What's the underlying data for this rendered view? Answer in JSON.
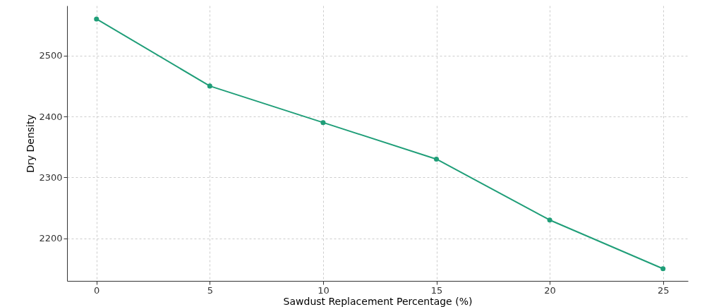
{
  "chart_data": {
    "type": "line",
    "xlabel": "Sawdust Replacement Percentage (%)",
    "ylabel": "Dry Density",
    "x": [
      0,
      5,
      10,
      15,
      20,
      25
    ],
    "series": [
      {
        "color": "#1f9e78",
        "values": [
          2560,
          2450,
          2390,
          2330,
          2230,
          2150
        ]
      }
    ],
    "xlim": [
      -1.3,
      26.1
    ],
    "xticks": [
      0,
      5,
      10,
      15,
      20,
      25
    ],
    "ylim": [
      2130,
      2582
    ],
    "yticks": [
      2200,
      2300,
      2400,
      2500
    ],
    "grid": true,
    "marker": "circle",
    "line_style": "solid"
  }
}
